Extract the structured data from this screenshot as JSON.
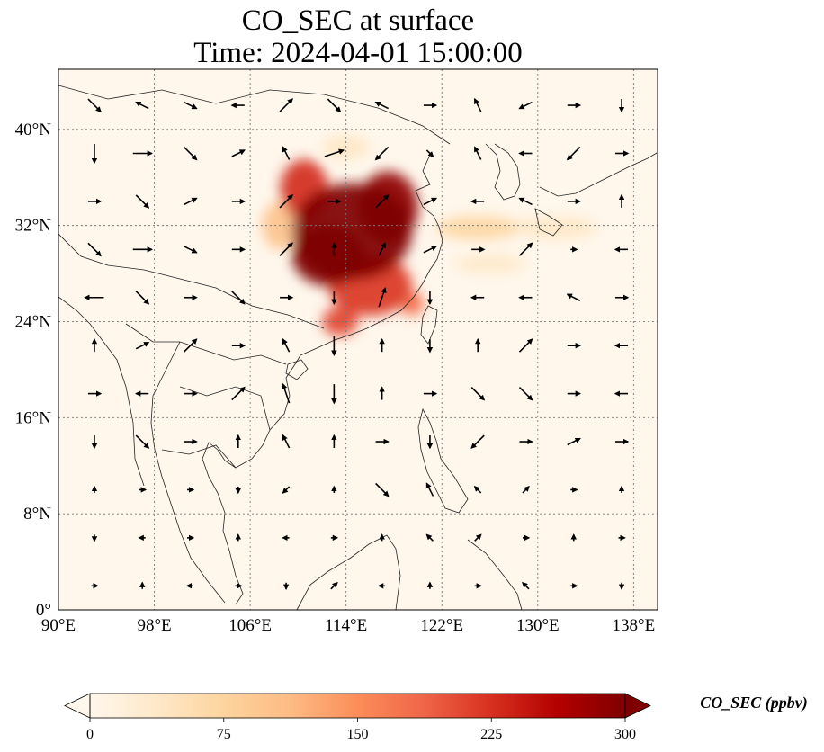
{
  "title": {
    "line1": "CO_SEC at surface",
    "line2": "Time: 2024-04-01 15:00:00"
  },
  "chart_data": {
    "type": "heatmap",
    "map_extent": {
      "lon": [
        90,
        140
      ],
      "lat": [
        0,
        45
      ]
    },
    "x_ticks": [
      {
        "lon": 90,
        "label": "90°E"
      },
      {
        "lon": 98,
        "label": "98°E"
      },
      {
        "lon": 106,
        "label": "106°E"
      },
      {
        "lon": 114,
        "label": "114°E"
      },
      {
        "lon": 122,
        "label": "122°E"
      },
      {
        "lon": 130,
        "label": "130°E"
      },
      {
        "lon": 138,
        "label": "138°E"
      }
    ],
    "y_ticks": [
      {
        "lat": 0,
        "label": "0°"
      },
      {
        "lat": 8,
        "label": "8°N"
      },
      {
        "lat": 16,
        "label": "16°N"
      },
      {
        "lat": 24,
        "label": "24°N"
      },
      {
        "lat": 32,
        "label": "32°N"
      },
      {
        "lat": 40,
        "label": "40°N"
      }
    ],
    "gridlines": true,
    "colorbar": {
      "label": "CO_SEC (ppbv)",
      "min": 0,
      "max": 300,
      "ticks": [
        0,
        75,
        150,
        225,
        300
      ],
      "extend": "both",
      "colormap": "OrRd",
      "colors": [
        "#fff7ec",
        "#fee8c8",
        "#fdd49e",
        "#fdbb84",
        "#fc8d59",
        "#ef6548",
        "#d7301f",
        "#b30000",
        "#7f0000"
      ]
    },
    "plume_blobs": [
      {
        "lon": 114.5,
        "lat": 31.5,
        "rx": 5.0,
        "ry": 4.0,
        "value": 300
      },
      {
        "lon": 112.5,
        "lat": 29.5,
        "rx": 3.0,
        "ry": 2.5,
        "value": 300
      },
      {
        "lon": 117.5,
        "lat": 33.5,
        "rx": 2.5,
        "ry": 3.0,
        "value": 290
      },
      {
        "lon": 110.5,
        "lat": 35.0,
        "rx": 2.0,
        "ry": 2.5,
        "value": 230
      },
      {
        "lon": 116.0,
        "lat": 27.0,
        "rx": 3.5,
        "ry": 2.5,
        "value": 220
      },
      {
        "lon": 113.5,
        "lat": 24.0,
        "rx": 1.5,
        "ry": 1.2,
        "value": 210
      },
      {
        "lon": 119.5,
        "lat": 25.5,
        "rx": 1.0,
        "ry": 1.0,
        "value": 180
      },
      {
        "lon": 125.0,
        "lat": 31.8,
        "rx": 3.5,
        "ry": 1.0,
        "value": 70
      },
      {
        "lon": 131.5,
        "lat": 31.8,
        "rx": 3.5,
        "ry": 0.9,
        "value": 40
      },
      {
        "lon": 126.0,
        "lat": 28.8,
        "rx": 3.0,
        "ry": 0.8,
        "value": 35
      },
      {
        "lon": 114.0,
        "lat": 38.5,
        "rx": 2.0,
        "ry": 1.0,
        "value": 40
      },
      {
        "lon": 108.5,
        "lat": 32.0,
        "rx": 1.5,
        "ry": 2.0,
        "value": 100
      }
    ],
    "wind_vectors": [
      {
        "lon": 93,
        "lat": 42,
        "u": 1,
        "v": -1
      },
      {
        "lon": 97,
        "lat": 42,
        "u": -1,
        "v": 0.5
      },
      {
        "lon": 101,
        "lat": 42,
        "u": 1,
        "v": -0.5
      },
      {
        "lon": 105,
        "lat": 42,
        "u": -1,
        "v": 0
      },
      {
        "lon": 109,
        "lat": 42,
        "u": 1,
        "v": 1
      },
      {
        "lon": 113,
        "lat": 42,
        "u": 1,
        "v": -1
      },
      {
        "lon": 117,
        "lat": 42,
        "u": -1,
        "v": 0.5
      },
      {
        "lon": 121,
        "lat": 42,
        "u": 1,
        "v": 0
      },
      {
        "lon": 125,
        "lat": 42,
        "u": -0.5,
        "v": 1
      },
      {
        "lon": 129,
        "lat": 42,
        "u": -1,
        "v": -0.5
      },
      {
        "lon": 133,
        "lat": 42,
        "u": 1,
        "v": 0
      },
      {
        "lon": 137,
        "lat": 42,
        "u": 0,
        "v": -1
      },
      {
        "lon": 93,
        "lat": 38,
        "u": 0,
        "v": -1.5
      },
      {
        "lon": 97,
        "lat": 38,
        "u": 1.5,
        "v": 0
      },
      {
        "lon": 101,
        "lat": 38,
        "u": 1,
        "v": -1
      },
      {
        "lon": 105,
        "lat": 38,
        "u": 1,
        "v": 0.5
      },
      {
        "lon": 109,
        "lat": 38,
        "u": -0.5,
        "v": 1
      },
      {
        "lon": 113,
        "lat": 38,
        "u": 1.5,
        "v": 0.5
      },
      {
        "lon": 117,
        "lat": 38,
        "u": -1,
        "v": -1
      },
      {
        "lon": 121,
        "lat": 38,
        "u": 0.5,
        "v": -0.5
      },
      {
        "lon": 125,
        "lat": 38,
        "u": -0.5,
        "v": 1
      },
      {
        "lon": 129,
        "lat": 38,
        "u": -1,
        "v": 0
      },
      {
        "lon": 133,
        "lat": 38,
        "u": -1,
        "v": -1
      },
      {
        "lon": 137,
        "lat": 38,
        "u": 1,
        "v": 0
      },
      {
        "lon": 93,
        "lat": 34,
        "u": 1,
        "v": 0
      },
      {
        "lon": 97,
        "lat": 34,
        "u": 1,
        "v": -1
      },
      {
        "lon": 101,
        "lat": 34,
        "u": 1,
        "v": 0.5
      },
      {
        "lon": 105,
        "lat": 34,
        "u": 1,
        "v": 0
      },
      {
        "lon": 109,
        "lat": 34,
        "u": 1,
        "v": 1
      },
      {
        "lon": 113,
        "lat": 34,
        "u": 1,
        "v": 0
      },
      {
        "lon": 117,
        "lat": 34,
        "u": 1,
        "v": 1
      },
      {
        "lon": 121,
        "lat": 34,
        "u": 1,
        "v": 0.5
      },
      {
        "lon": 125,
        "lat": 34,
        "u": -1,
        "v": 0
      },
      {
        "lon": 129,
        "lat": 34,
        "u": -1,
        "v": 0.5
      },
      {
        "lon": 133,
        "lat": 34,
        "u": 1,
        "v": 0
      },
      {
        "lon": 137,
        "lat": 34,
        "u": 0,
        "v": 1
      },
      {
        "lon": 93,
        "lat": 30,
        "u": 1,
        "v": -1
      },
      {
        "lon": 97,
        "lat": 30,
        "u": 1.5,
        "v": 0
      },
      {
        "lon": 101,
        "lat": 30,
        "u": 1,
        "v": -0.5
      },
      {
        "lon": 105,
        "lat": 30,
        "u": 1,
        "v": 0
      },
      {
        "lon": 109,
        "lat": 30,
        "u": 1,
        "v": 1
      },
      {
        "lon": 113,
        "lat": 30,
        "u": 0,
        "v": 1
      },
      {
        "lon": 117,
        "lat": 30,
        "u": 0.5,
        "v": 1
      },
      {
        "lon": 121,
        "lat": 30,
        "u": 1,
        "v": 0.5
      },
      {
        "lon": 125,
        "lat": 30,
        "u": 1,
        "v": 0
      },
      {
        "lon": 129,
        "lat": 30,
        "u": 1,
        "v": 1
      },
      {
        "lon": 133,
        "lat": 30,
        "u": 0.5,
        "v": 0
      },
      {
        "lon": 137,
        "lat": 30,
        "u": -1,
        "v": 0
      },
      {
        "lon": 93,
        "lat": 26,
        "u": -1.5,
        "v": 0
      },
      {
        "lon": 97,
        "lat": 26,
        "u": 1,
        "v": -1
      },
      {
        "lon": 101,
        "lat": 26,
        "u": 1,
        "v": 0
      },
      {
        "lon": 105,
        "lat": 26,
        "u": 1,
        "v": -1
      },
      {
        "lon": 109,
        "lat": 26,
        "u": 1,
        "v": 0
      },
      {
        "lon": 113,
        "lat": 26,
        "u": 0,
        "v": -1
      },
      {
        "lon": 117,
        "lat": 26,
        "u": 0.5,
        "v": 1.5
      },
      {
        "lon": 121,
        "lat": 26,
        "u": 0,
        "v": -1
      },
      {
        "lon": 125,
        "lat": 26,
        "u": -1,
        "v": 0
      },
      {
        "lon": 129,
        "lat": 26,
        "u": -1,
        "v": 0
      },
      {
        "lon": 133,
        "lat": 26,
        "u": -1,
        "v": 0.5
      },
      {
        "lon": 137,
        "lat": 26,
        "u": 1,
        "v": 0
      },
      {
        "lon": 93,
        "lat": 22,
        "u": 0,
        "v": 1
      },
      {
        "lon": 97,
        "lat": 22,
        "u": 1,
        "v": 0.5
      },
      {
        "lon": 101,
        "lat": 22,
        "u": 1,
        "v": 1
      },
      {
        "lon": 105,
        "lat": 22,
        "u": 1,
        "v": 0
      },
      {
        "lon": 109,
        "lat": 22,
        "u": -0.5,
        "v": 1
      },
      {
        "lon": 113,
        "lat": 22,
        "u": 0,
        "v": -1.5
      },
      {
        "lon": 117,
        "lat": 22,
        "u": 0,
        "v": 1
      },
      {
        "lon": 121,
        "lat": 22,
        "u": 0,
        "v": -1
      },
      {
        "lon": 125,
        "lat": 22,
        "u": 0,
        "v": 1
      },
      {
        "lon": 129,
        "lat": 22,
        "u": 1,
        "v": 1
      },
      {
        "lon": 133,
        "lat": 22,
        "u": 1,
        "v": 0
      },
      {
        "lon": 137,
        "lat": 22,
        "u": -1,
        "v": 0
      },
      {
        "lon": 93,
        "lat": 18,
        "u": 1,
        "v": 0
      },
      {
        "lon": 97,
        "lat": 18,
        "u": -1,
        "v": 0
      },
      {
        "lon": 101,
        "lat": 18,
        "u": 1,
        "v": 0
      },
      {
        "lon": 105,
        "lat": 18,
        "u": 1,
        "v": 1
      },
      {
        "lon": 109,
        "lat": 18,
        "u": -0.5,
        "v": 1.5
      },
      {
        "lon": 113,
        "lat": 18,
        "u": 0,
        "v": -1.5
      },
      {
        "lon": 117,
        "lat": 18,
        "u": 0,
        "v": 1
      },
      {
        "lon": 121,
        "lat": 18,
        "u": 1,
        "v": 0
      },
      {
        "lon": 125,
        "lat": 18,
        "u": 1,
        "v": -1
      },
      {
        "lon": 129,
        "lat": 18,
        "u": 1,
        "v": -1
      },
      {
        "lon": 133,
        "lat": 18,
        "u": 1,
        "v": 0
      },
      {
        "lon": 137,
        "lat": 18,
        "u": -1,
        "v": 0
      },
      {
        "lon": 93,
        "lat": 14,
        "u": 0,
        "v": -1
      },
      {
        "lon": 97,
        "lat": 14,
        "u": 1,
        "v": -1
      },
      {
        "lon": 101,
        "lat": 14,
        "u": 1,
        "v": 0
      },
      {
        "lon": 105,
        "lat": 14,
        "u": 0,
        "v": 1
      },
      {
        "lon": 109,
        "lat": 14,
        "u": -0.5,
        "v": 1
      },
      {
        "lon": 113,
        "lat": 14,
        "u": 0,
        "v": 1
      },
      {
        "lon": 117,
        "lat": 14,
        "u": 1,
        "v": 0
      },
      {
        "lon": 121,
        "lat": 14,
        "u": 0,
        "v": -1
      },
      {
        "lon": 125,
        "lat": 14,
        "u": -1,
        "v": -1
      },
      {
        "lon": 129,
        "lat": 14,
        "u": 1,
        "v": 0
      },
      {
        "lon": 133,
        "lat": 14,
        "u": 1,
        "v": 0.5
      },
      {
        "lon": 137,
        "lat": 14,
        "u": 1,
        "v": 0
      },
      {
        "lon": 93,
        "lat": 10,
        "u": 0,
        "v": 0.5
      },
      {
        "lon": 97,
        "lat": 10,
        "u": 0.5,
        "v": 0
      },
      {
        "lon": 101,
        "lat": 10,
        "u": 0.5,
        "v": 0
      },
      {
        "lon": 105,
        "lat": 10,
        "u": 0,
        "v": -0.5
      },
      {
        "lon": 109,
        "lat": 10,
        "u": -0.5,
        "v": -0.5
      },
      {
        "lon": 113,
        "lat": 10,
        "u": 0,
        "v": 0.5
      },
      {
        "lon": 117,
        "lat": 10,
        "u": 1,
        "v": -1
      },
      {
        "lon": 121,
        "lat": 10,
        "u": -0.5,
        "v": 1
      },
      {
        "lon": 125,
        "lat": 10,
        "u": -0.5,
        "v": 0.5
      },
      {
        "lon": 129,
        "lat": 10,
        "u": 0.5,
        "v": 0.5
      },
      {
        "lon": 133,
        "lat": 10,
        "u": 0.5,
        "v": 0
      },
      {
        "lon": 137,
        "lat": 10,
        "u": 0,
        "v": 0.5
      },
      {
        "lon": 93,
        "lat": 6,
        "u": 0,
        "v": -0.5
      },
      {
        "lon": 97,
        "lat": 6,
        "u": -0.5,
        "v": 0
      },
      {
        "lon": 101,
        "lat": 6,
        "u": 0.5,
        "v": 0
      },
      {
        "lon": 105,
        "lat": 6,
        "u": 0,
        "v": 0.5
      },
      {
        "lon": 109,
        "lat": 6,
        "u": -0.5,
        "v": 0
      },
      {
        "lon": 113,
        "lat": 6,
        "u": 0.5,
        "v": 0
      },
      {
        "lon": 117,
        "lat": 6,
        "u": 0,
        "v": 0.5
      },
      {
        "lon": 121,
        "lat": 6,
        "u": -0.5,
        "v": 0.5
      },
      {
        "lon": 125,
        "lat": 6,
        "u": 0.5,
        "v": 0.5
      },
      {
        "lon": 129,
        "lat": 6,
        "u": 0.5,
        "v": 0
      },
      {
        "lon": 133,
        "lat": 6,
        "u": 0,
        "v": 0.5
      },
      {
        "lon": 137,
        "lat": 6,
        "u": 0.5,
        "v": 0
      },
      {
        "lon": 93,
        "lat": 2,
        "u": 0.5,
        "v": 0
      },
      {
        "lon": 97,
        "lat": 2,
        "u": 0,
        "v": 0.5
      },
      {
        "lon": 101,
        "lat": 2,
        "u": -0.5,
        "v": 0
      },
      {
        "lon": 105,
        "lat": 2,
        "u": 0.5,
        "v": 0
      },
      {
        "lon": 109,
        "lat": 2,
        "u": 0,
        "v": -0.5
      },
      {
        "lon": 113,
        "lat": 2,
        "u": 0.5,
        "v": 0.5
      },
      {
        "lon": 117,
        "lat": 2,
        "u": -0.5,
        "v": 0
      },
      {
        "lon": 121,
        "lat": 2,
        "u": 0,
        "v": 0.5
      },
      {
        "lon": 125,
        "lat": 2,
        "u": 0.5,
        "v": 0
      },
      {
        "lon": 129,
        "lat": 2,
        "u": -0.5,
        "v": 0.5
      },
      {
        "lon": 133,
        "lat": 2,
        "u": 0.5,
        "v": 0
      },
      {
        "lon": 137,
        "lat": 2,
        "u": 0,
        "v": -0.5
      }
    ]
  }
}
